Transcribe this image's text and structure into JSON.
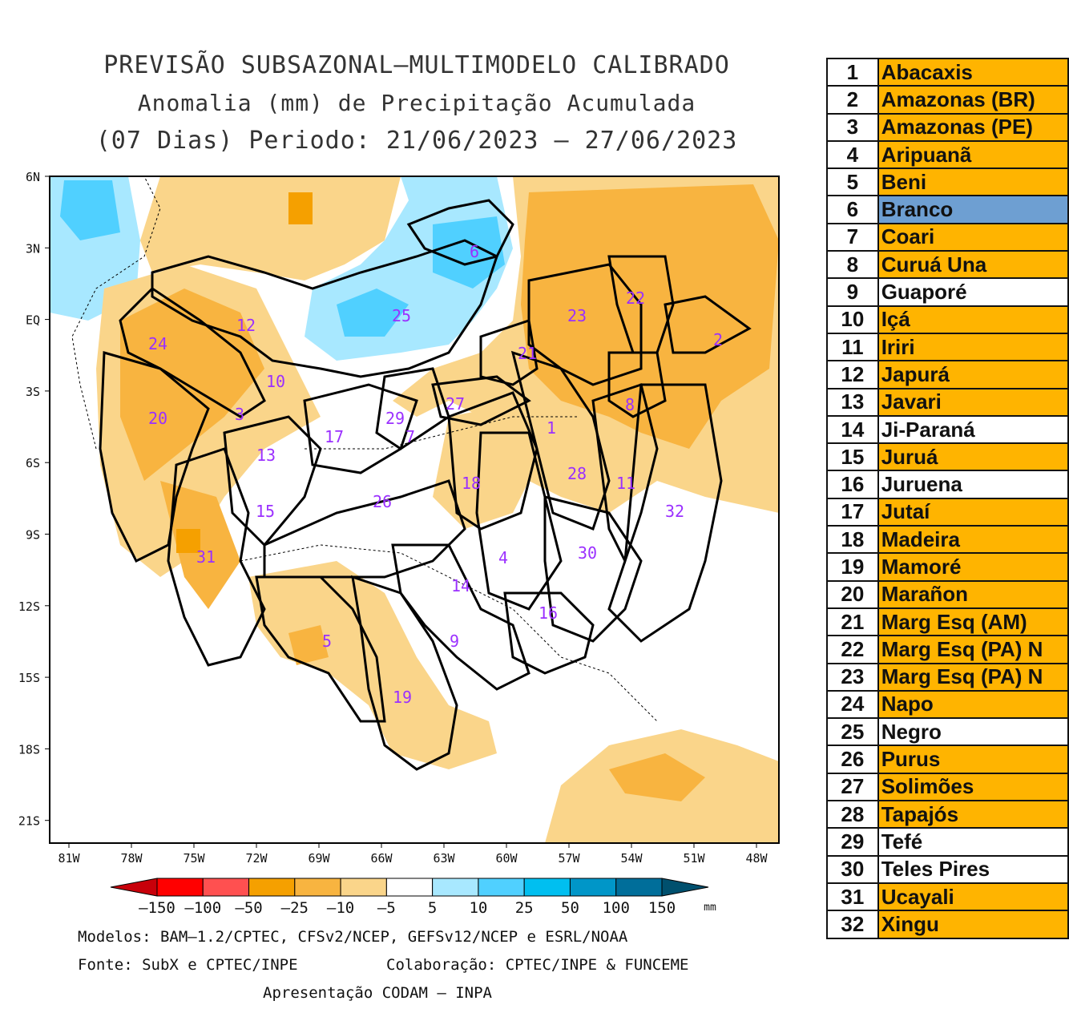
{
  "title": {
    "line1": "PREVISÃO SUBSAZONAL–MULTIMODELO CALIBRADO",
    "line2": "Anomalia (mm) de Precipitação Acumulada",
    "line3": "(07 Dias) Periodo: 21/06/2023 – 27/06/2023"
  },
  "axes": {
    "lat_labels": [
      "6N",
      "3N",
      "EQ",
      "3S",
      "6S",
      "9S",
      "12S",
      "15S",
      "18S",
      "21S"
    ],
    "lon_labels": [
      "81W",
      "78W",
      "75W",
      "72W",
      "69W",
      "66W",
      "63W",
      "60W",
      "57W",
      "54W",
      "51W",
      "48W"
    ]
  },
  "colorbar": {
    "labels": [
      "–150",
      "–100",
      "–50",
      "–25",
      "–10",
      "–5",
      "5",
      "10",
      "25",
      "50",
      "100",
      "150"
    ],
    "unit": "mm",
    "colors": [
      "#c8000a",
      "#ff0000",
      "#ff5050",
      "#f5a000",
      "#f8b440",
      "#fad58a",
      "#ffffff",
      "#a8e8ff",
      "#50d0ff",
      "#00bff0",
      "#0096c8",
      "#006e9a",
      "#00506e"
    ]
  },
  "map_labels": [
    {
      "id": "1"
    },
    {
      "id": "2"
    },
    {
      "id": "3"
    },
    {
      "id": "4"
    },
    {
      "id": "5"
    },
    {
      "id": "6"
    },
    {
      "id": "7"
    },
    {
      "id": "8"
    },
    {
      "id": "9"
    },
    {
      "id": "10"
    },
    {
      "id": "11"
    },
    {
      "id": "12"
    },
    {
      "id": "13"
    },
    {
      "id": "14"
    },
    {
      "id": "15"
    },
    {
      "id": "16"
    },
    {
      "id": "17"
    },
    {
      "id": "18"
    },
    {
      "id": "19"
    },
    {
      "id": "20"
    },
    {
      "id": "21"
    },
    {
      "id": "22"
    },
    {
      "id": "23"
    },
    {
      "id": "24"
    },
    {
      "id": "25"
    },
    {
      "id": "26"
    },
    {
      "id": "27"
    },
    {
      "id": "28"
    },
    {
      "id": "29"
    },
    {
      "id": "30"
    },
    {
      "id": "31"
    },
    {
      "id": "32"
    }
  ],
  "credits": {
    "models": "Modelos: BAM–1.2/CPTEC, CFSv2/NCEP, GEFSv12/NCEP e ESRL/NOAA",
    "source": "Fonte: SubX e CPTEC/INPE",
    "collab": "Colaboração: CPTEC/INPE & FUNCEME",
    "presentation": "Apresentação CODAM – INPA"
  },
  "basins": [
    {
      "num": "1",
      "name": "Abacaxis",
      "color": "#ffb400"
    },
    {
      "num": "2",
      "name": "Amazonas (BR)",
      "color": "#ffb400"
    },
    {
      "num": "3",
      "name": "Amazonas (PE)",
      "color": "#ffb400"
    },
    {
      "num": "4",
      "name": "Aripuanã",
      "color": "#ffb400"
    },
    {
      "num": "5",
      "name": "Beni",
      "color": "#ffb400"
    },
    {
      "num": "6",
      "name": "Branco",
      "color": "#6e9fd2"
    },
    {
      "num": "7",
      "name": "Coari",
      "color": "#ffb400"
    },
    {
      "num": "8",
      "name": "Curuá Una",
      "color": "#ffb400"
    },
    {
      "num": "9",
      "name": "Guaporé",
      "color": "#ffffff"
    },
    {
      "num": "10",
      "name": "Içá",
      "color": "#ffb400"
    },
    {
      "num": "11",
      "name": "Iriri",
      "color": "#ffb400"
    },
    {
      "num": "12",
      "name": "Japurá",
      "color": "#ffb400"
    },
    {
      "num": "13",
      "name": "Javari",
      "color": "#ffb400"
    },
    {
      "num": "14",
      "name": "Ji-Paraná",
      "color": "#ffffff"
    },
    {
      "num": "15",
      "name": "Juruá",
      "color": "#ffb400"
    },
    {
      "num": "16",
      "name": "Juruena",
      "color": "#ffffff"
    },
    {
      "num": "17",
      "name": "Jutaí",
      "color": "#ffb400"
    },
    {
      "num": "18",
      "name": "Madeira",
      "color": "#ffb400"
    },
    {
      "num": "19",
      "name": "Mamoré",
      "color": "#ffb400"
    },
    {
      "num": "20",
      "name": "Marañon",
      "color": "#ffb400"
    },
    {
      "num": "21",
      "name": "Marg Esq (AM)",
      "color": "#ffb400"
    },
    {
      "num": "22",
      "name": "Marg Esq (PA) N",
      "color": "#ffb400"
    },
    {
      "num": "23",
      "name": "Marg Esq (PA) N",
      "color": "#ffb400"
    },
    {
      "num": "24",
      "name": "Napo",
      "color": "#ffb400"
    },
    {
      "num": "25",
      "name": "Negro",
      "color": "#ffffff"
    },
    {
      "num": "26",
      "name": "Purus",
      "color": "#ffb400"
    },
    {
      "num": "27",
      "name": "Solimões",
      "color": "#ffb400"
    },
    {
      "num": "28",
      "name": "Tapajós",
      "color": "#ffb400"
    },
    {
      "num": "29",
      "name": "Tefé",
      "color": "#ffffff"
    },
    {
      "num": "30",
      "name": "Teles Pires",
      "color": "#ffffff"
    },
    {
      "num": "31",
      "name": "Ucayali",
      "color": "#ffb400"
    },
    {
      "num": "32",
      "name": "Xingu",
      "color": "#ffb400"
    }
  ]
}
